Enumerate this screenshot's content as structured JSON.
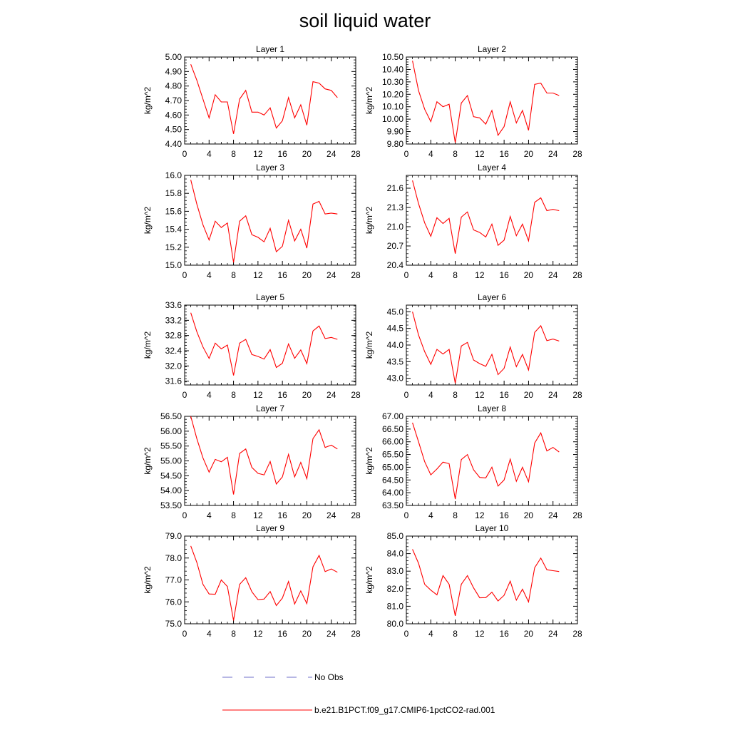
{
  "title": "soil liquid water",
  "legend": {
    "entries": [
      {
        "label": "No Obs",
        "color": "#6f6fc8",
        "style": "dashed"
      },
      {
        "label": "b.e21.B1PCT.f09_g17.CMIP6-1pctCO2-rad.001",
        "color": "#ff0000",
        "style": "solid"
      }
    ]
  },
  "chart_data": [
    {
      "type": "line",
      "title": "Layer 1",
      "xlabel": "",
      "ylabel": "kg/m^2",
      "xlim": [
        0,
        28
      ],
      "xticks": [
        0,
        4,
        8,
        12,
        16,
        20,
        24,
        28
      ],
      "ylim": [
        4.4,
        5.0
      ],
      "yticks": [
        "4.40",
        "4.50",
        "4.60",
        "4.70",
        "4.80",
        "4.90",
        "5.00"
      ],
      "x": [
        1,
        2,
        3,
        4,
        5,
        6,
        7,
        8,
        9,
        10,
        11,
        12,
        13,
        14,
        15,
        16,
        17,
        18,
        19,
        20,
        21,
        22,
        23,
        24,
        25
      ],
      "series": [
        {
          "name": "b.e21.B1PCT.f09_g17.CMIP6-1pctCO2-rad.001",
          "color": "#ff0000",
          "values": [
            4.95,
            4.84,
            4.71,
            4.58,
            4.74,
            4.69,
            4.69,
            4.47,
            4.71,
            4.77,
            4.62,
            4.62,
            4.6,
            4.65,
            4.51,
            4.56,
            4.72,
            4.58,
            4.67,
            4.53,
            4.83,
            4.82,
            4.78,
            4.77,
            4.72
          ]
        }
      ]
    },
    {
      "type": "line",
      "title": "Layer 2",
      "xlabel": "",
      "ylabel": "kg/m^2",
      "xlim": [
        0,
        28
      ],
      "xticks": [
        0,
        4,
        8,
        12,
        16,
        20,
        24,
        28
      ],
      "ylim": [
        9.8,
        10.5
      ],
      "yticks": [
        "9.80",
        "9.90",
        "10.00",
        "10.10",
        "10.20",
        "10.30",
        "10.40",
        "10.50"
      ],
      "x": [
        1,
        2,
        3,
        4,
        5,
        6,
        7,
        8,
        9,
        10,
        11,
        12,
        13,
        14,
        15,
        16,
        17,
        18,
        19,
        20,
        21,
        22,
        23,
        24,
        25
      ],
      "series": [
        {
          "name": "b.e21.B1PCT.f09_g17.CMIP6-1pctCO2-rad.001",
          "color": "#ff0000",
          "values": [
            10.47,
            10.23,
            10.08,
            9.98,
            10.14,
            10.1,
            10.12,
            9.81,
            10.13,
            10.19,
            10.02,
            10.01,
            9.96,
            10.07,
            9.87,
            9.94,
            10.14,
            9.97,
            10.07,
            9.91,
            10.28,
            10.29,
            10.21,
            10.21,
            10.19
          ]
        }
      ]
    },
    {
      "type": "line",
      "title": "Layer 3",
      "xlabel": "",
      "ylabel": "kg/m^2",
      "xlim": [
        0,
        28
      ],
      "xticks": [
        0,
        4,
        8,
        12,
        16,
        20,
        24,
        28
      ],
      "ylim": [
        15.0,
        16.0
      ],
      "yticks": [
        "15.0",
        "15.2",
        "15.4",
        "15.6",
        "15.8",
        "16.0"
      ],
      "x": [
        1,
        2,
        3,
        4,
        5,
        6,
        7,
        8,
        9,
        10,
        11,
        12,
        13,
        14,
        15,
        16,
        17,
        18,
        19,
        20,
        21,
        22,
        23,
        24,
        25
      ],
      "series": [
        {
          "name": "b.e21.B1PCT.f09_g17.CMIP6-1pctCO2-rad.001",
          "color": "#ff0000",
          "values": [
            15.95,
            15.68,
            15.45,
            15.28,
            15.49,
            15.42,
            15.47,
            15.03,
            15.49,
            15.55,
            15.34,
            15.31,
            15.26,
            15.41,
            15.15,
            15.21,
            15.5,
            15.27,
            15.4,
            15.19,
            15.68,
            15.71,
            15.57,
            15.58,
            15.57
          ]
        }
      ]
    },
    {
      "type": "line",
      "title": "Layer 4",
      "xlabel": "",
      "ylabel": "kg/m^2",
      "xlim": [
        0,
        28
      ],
      "xticks": [
        0,
        4,
        8,
        12,
        16,
        20,
        24,
        28
      ],
      "ylim": [
        20.4,
        21.8
      ],
      "yticks": [
        "20.4",
        "20.7",
        "21.0",
        "21.3",
        "21.6"
      ],
      "x": [
        1,
        2,
        3,
        4,
        5,
        6,
        7,
        8,
        9,
        10,
        11,
        12,
        13,
        14,
        15,
        16,
        17,
        18,
        19,
        20,
        21,
        22,
        23,
        24,
        25
      ],
      "series": [
        {
          "name": "b.e21.B1PCT.f09_g17.CMIP6-1pctCO2-rad.001",
          "color": "#ff0000",
          "values": [
            21.72,
            21.36,
            21.06,
            20.85,
            21.14,
            21.05,
            21.13,
            20.58,
            21.15,
            21.23,
            20.95,
            20.91,
            20.84,
            21.04,
            20.71,
            20.79,
            21.16,
            20.86,
            21.04,
            20.78,
            21.38,
            21.45,
            21.25,
            21.27,
            21.25
          ]
        }
      ]
    },
    {
      "type": "line",
      "title": "Layer 5",
      "xlabel": "",
      "ylabel": "kg/m^2",
      "xlim": [
        0,
        28
      ],
      "xticks": [
        0,
        4,
        8,
        12,
        16,
        20,
        24,
        28
      ],
      "ylim": [
        31.5,
        33.6
      ],
      "yticks": [
        "31.6",
        "32.0",
        "32.4",
        "32.8",
        "33.2",
        "33.6"
      ],
      "x": [
        1,
        2,
        3,
        4,
        5,
        6,
        7,
        8,
        9,
        10,
        11,
        12,
        13,
        14,
        15,
        16,
        17,
        18,
        19,
        20,
        21,
        22,
        23,
        24,
        25
      ],
      "series": [
        {
          "name": "b.e21.B1PCT.f09_g17.CMIP6-1pctCO2-rad.001",
          "color": "#ff0000",
          "values": [
            33.4,
            32.9,
            32.5,
            32.2,
            32.6,
            32.45,
            32.55,
            31.75,
            32.6,
            32.7,
            32.3,
            32.25,
            32.18,
            32.43,
            31.96,
            32.07,
            32.58,
            32.2,
            32.42,
            32.06,
            32.92,
            33.05,
            32.72,
            32.75,
            32.7
          ]
        }
      ]
    },
    {
      "type": "line",
      "title": "Layer 6",
      "xlabel": "",
      "ylabel": "kg/m^2",
      "xlim": [
        0,
        28
      ],
      "xticks": [
        0,
        4,
        8,
        12,
        16,
        20,
        24,
        28
      ],
      "ylim": [
        42.8,
        45.2
      ],
      "yticks": [
        "43.0",
        "43.5",
        "44.0",
        "44.5",
        "45.0"
      ],
      "x": [
        1,
        2,
        3,
        4,
        5,
        6,
        7,
        8,
        9,
        10,
        11,
        12,
        13,
        14,
        15,
        16,
        17,
        18,
        19,
        20,
        21,
        22,
        23,
        24,
        25
      ],
      "series": [
        {
          "name": "b.e21.B1PCT.f09_g17.CMIP6-1pctCO2-rad.001",
          "color": "#ff0000",
          "values": [
            45.0,
            44.3,
            43.8,
            43.42,
            43.87,
            43.73,
            43.87,
            42.85,
            43.97,
            44.08,
            43.55,
            43.44,
            43.36,
            43.72,
            43.11,
            43.3,
            43.94,
            43.35,
            43.72,
            43.25,
            44.38,
            44.58,
            44.13,
            44.18,
            44.12
          ]
        }
      ]
    },
    {
      "type": "line",
      "title": "Layer 7",
      "xlabel": "",
      "ylabel": "kg/m^2",
      "xlim": [
        0,
        28
      ],
      "xticks": [
        0,
        4,
        8,
        12,
        16,
        20,
        24,
        28
      ],
      "ylim": [
        53.5,
        56.5
      ],
      "yticks": [
        "53.50",
        "54.00",
        "54.50",
        "55.00",
        "55.50",
        "56.00",
        "56.50"
      ],
      "x": [
        1,
        2,
        3,
        4,
        5,
        6,
        7,
        8,
        9,
        10,
        11,
        12,
        13,
        14,
        15,
        16,
        17,
        18,
        19,
        20,
        21,
        22,
        23,
        24,
        25
      ],
      "series": [
        {
          "name": "b.e21.B1PCT.f09_g17.CMIP6-1pctCO2-rad.001",
          "color": "#ff0000",
          "values": [
            56.5,
            55.75,
            55.1,
            54.62,
            55.05,
            54.97,
            55.12,
            53.87,
            55.25,
            55.4,
            54.78,
            54.58,
            54.53,
            54.98,
            54.22,
            54.46,
            55.22,
            54.46,
            54.95,
            54.4,
            55.75,
            56.05,
            55.45,
            55.53,
            55.4
          ]
        }
      ]
    },
    {
      "type": "line",
      "title": "Layer 8",
      "xlabel": "",
      "ylabel": "kg/m^2",
      "xlim": [
        0,
        28
      ],
      "xticks": [
        0,
        4,
        8,
        12,
        16,
        20,
        24,
        28
      ],
      "ylim": [
        63.5,
        67.0
      ],
      "yticks": [
        "63.50",
        "64.00",
        "64.50",
        "65.00",
        "65.50",
        "66.00",
        "66.50",
        "67.00"
      ],
      "x": [
        1,
        2,
        3,
        4,
        5,
        6,
        7,
        8,
        9,
        10,
        11,
        12,
        13,
        14,
        15,
        16,
        17,
        18,
        19,
        20,
        21,
        22,
        23,
        24,
        25
      ],
      "series": [
        {
          "name": "b.e21.B1PCT.f09_g17.CMIP6-1pctCO2-rad.001",
          "color": "#ff0000",
          "values": [
            66.75,
            66.0,
            65.22,
            64.7,
            64.93,
            65.2,
            65.14,
            63.75,
            65.3,
            65.5,
            64.9,
            64.6,
            64.58,
            65.0,
            64.26,
            64.5,
            65.32,
            64.45,
            65.0,
            64.43,
            65.95,
            66.35,
            65.64,
            65.78,
            65.6
          ]
        }
      ]
    },
    {
      "type": "line",
      "title": "Layer 9",
      "xlabel": "",
      "ylabel": "kg/m^2",
      "xlim": [
        0,
        28
      ],
      "xticks": [
        0,
        4,
        8,
        12,
        16,
        20,
        24,
        28
      ],
      "ylim": [
        75.0,
        79.0
      ],
      "yticks": [
        "75.0",
        "76.0",
        "77.0",
        "78.0",
        "79.0"
      ],
      "x": [
        1,
        2,
        3,
        4,
        5,
        6,
        7,
        8,
        9,
        10,
        11,
        12,
        13,
        14,
        15,
        16,
        17,
        18,
        19,
        20,
        21,
        22,
        23,
        24,
        25
      ],
      "series": [
        {
          "name": "b.e21.B1PCT.f09_g17.CMIP6-1pctCO2-rad.001",
          "color": "#ff0000",
          "values": [
            78.55,
            77.8,
            76.8,
            76.36,
            76.35,
            77.0,
            76.7,
            75.15,
            76.8,
            77.1,
            76.46,
            76.1,
            76.13,
            76.47,
            75.83,
            76.17,
            76.93,
            75.9,
            76.5,
            75.92,
            77.6,
            78.12,
            77.38,
            77.5,
            77.35
          ]
        }
      ]
    },
    {
      "type": "line",
      "title": "Layer 10",
      "xlabel": "",
      "ylabel": "kg/m^2",
      "xlim": [
        0,
        28
      ],
      "xticks": [
        0,
        4,
        8,
        12,
        16,
        20,
        24,
        28
      ],
      "ylim": [
        80.0,
        85.0
      ],
      "yticks": [
        "80.0",
        "81.0",
        "82.0",
        "83.0",
        "84.0",
        "85.0"
      ],
      "x": [
        1,
        2,
        3,
        4,
        5,
        6,
        7,
        8,
        9,
        10,
        11,
        12,
        13,
        14,
        15,
        16,
        17,
        18,
        19,
        20,
        21,
        22,
        23,
        24,
        25
      ],
      "series": [
        {
          "name": "b.e21.B1PCT.f09_g17.CMIP6-1pctCO2-rad.001",
          "color": "#ff0000",
          "values": [
            84.25,
            83.45,
            82.25,
            81.92,
            81.65,
            82.75,
            82.25,
            80.45,
            82.25,
            82.75,
            82.05,
            81.48,
            81.49,
            81.8,
            81.3,
            81.62,
            82.43,
            81.35,
            81.97,
            81.25,
            83.2,
            83.75,
            83.08,
            83.03,
            82.98
          ]
        }
      ]
    }
  ]
}
